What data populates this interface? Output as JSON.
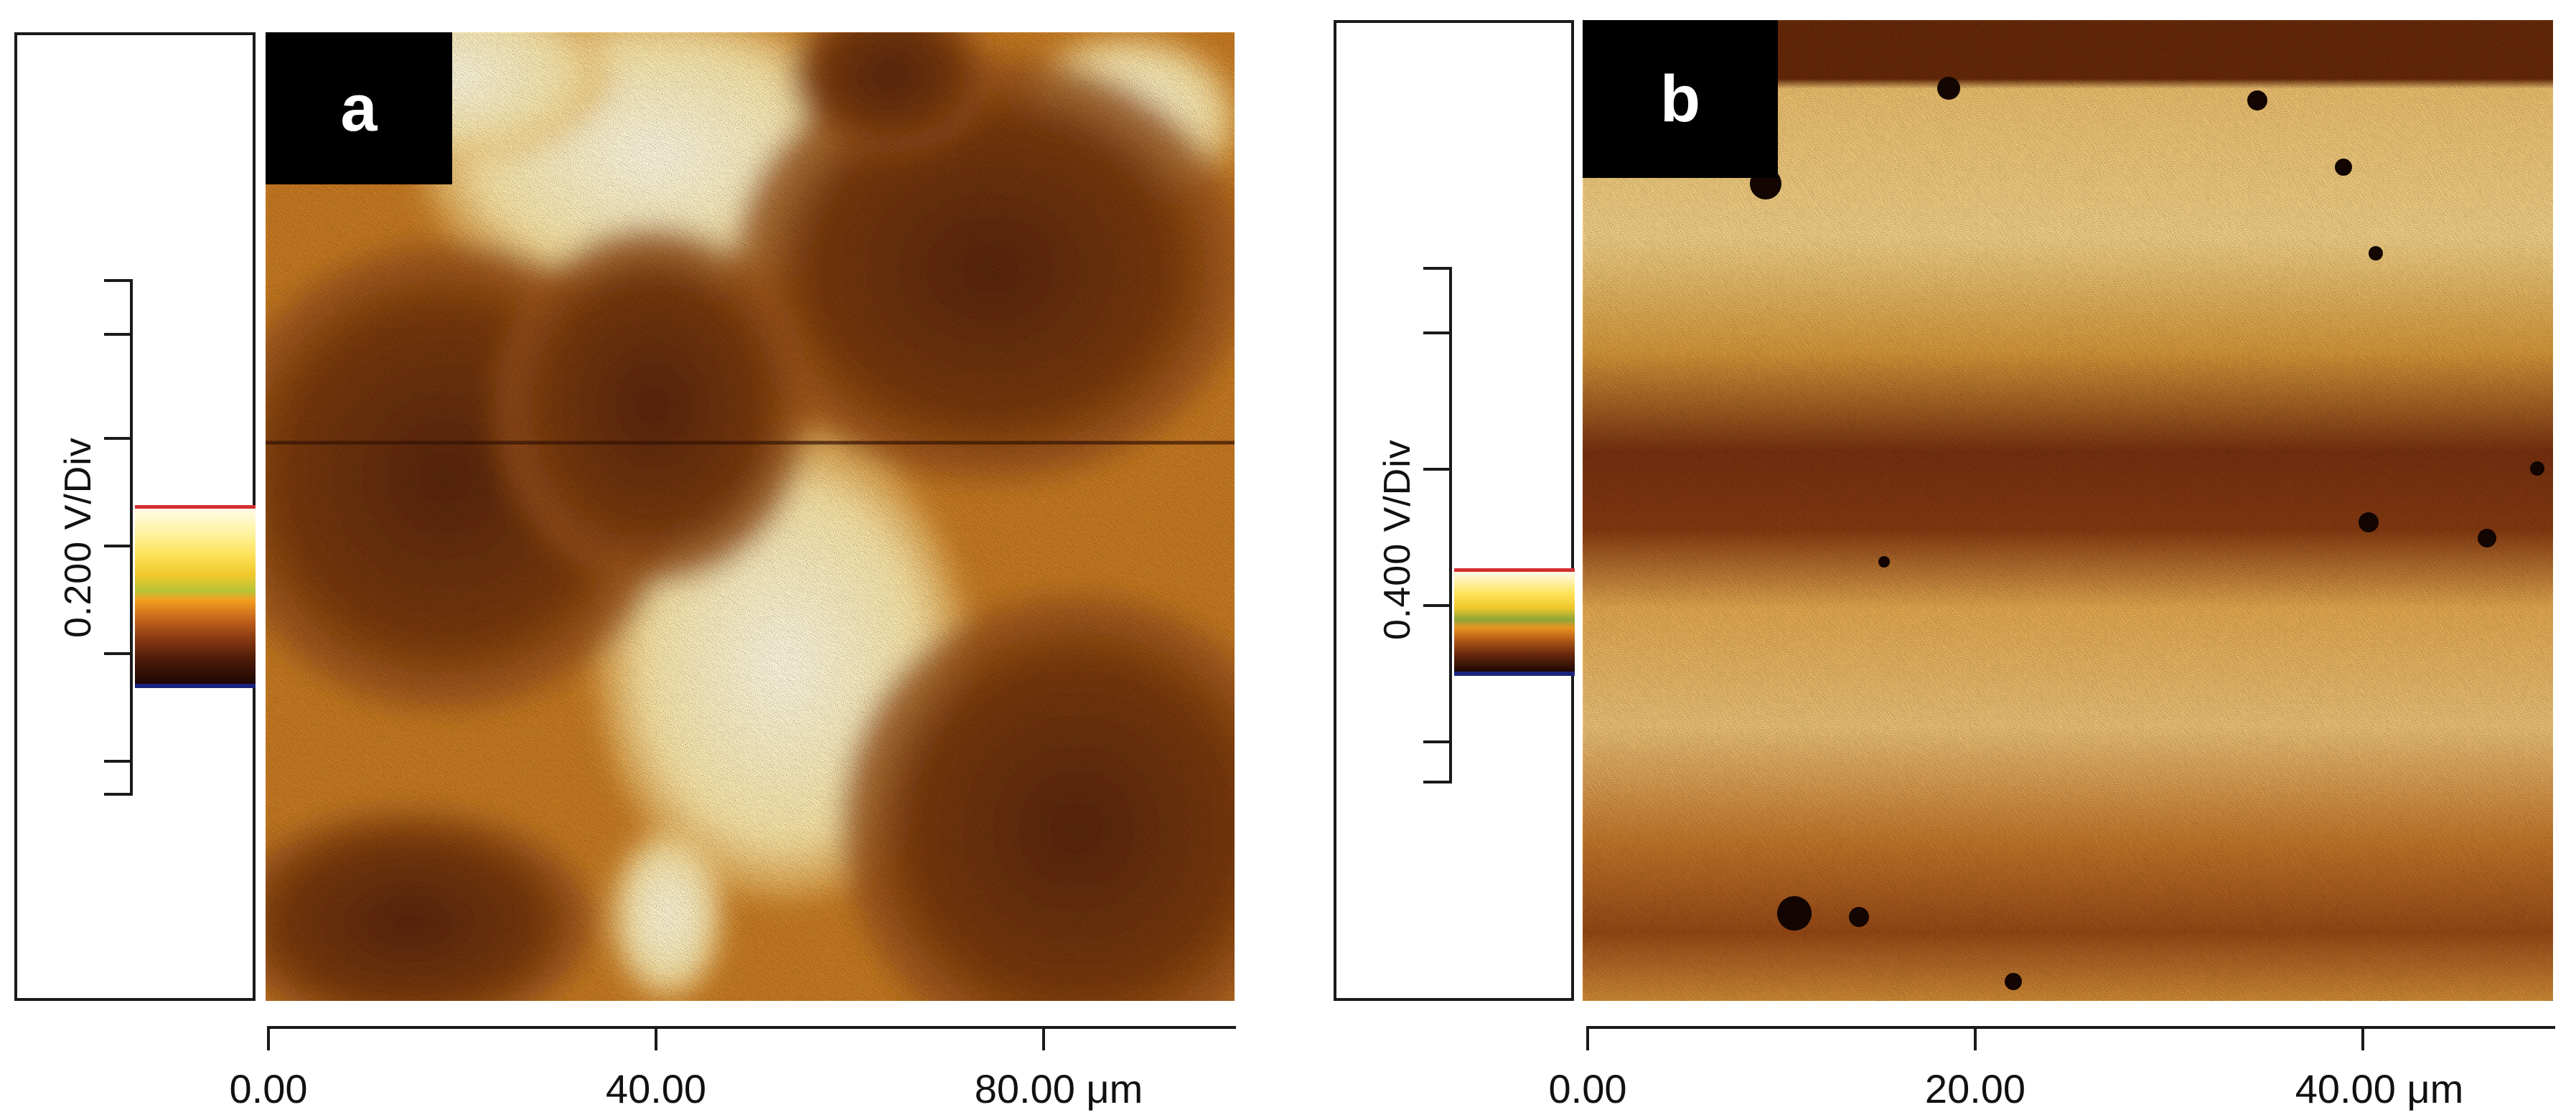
{
  "panels": [
    {
      "id": "a",
      "tag": "a",
      "scale_label": "0.200 V/Div",
      "x_tick_labels": [
        "0.00",
        "40.00",
        "80.00 μm"
      ],
      "x_unit": "μm",
      "x_range": [
        0,
        100
      ]
    },
    {
      "id": "b",
      "tag": "b",
      "scale_label": "0.400 V/Div",
      "x_tick_labels": [
        "0.00",
        "20.00",
        "40.00 μm"
      ],
      "x_unit": "μm",
      "x_range": [
        0,
        50
      ]
    }
  ],
  "colors": {
    "light": "#fff6dc",
    "mid": "#d08a2a",
    "dark": "#5a2508",
    "darkest": "#2a0d02",
    "colorbar_top": "#d32f2f",
    "colorbar_bottom": "#1a237e"
  }
}
